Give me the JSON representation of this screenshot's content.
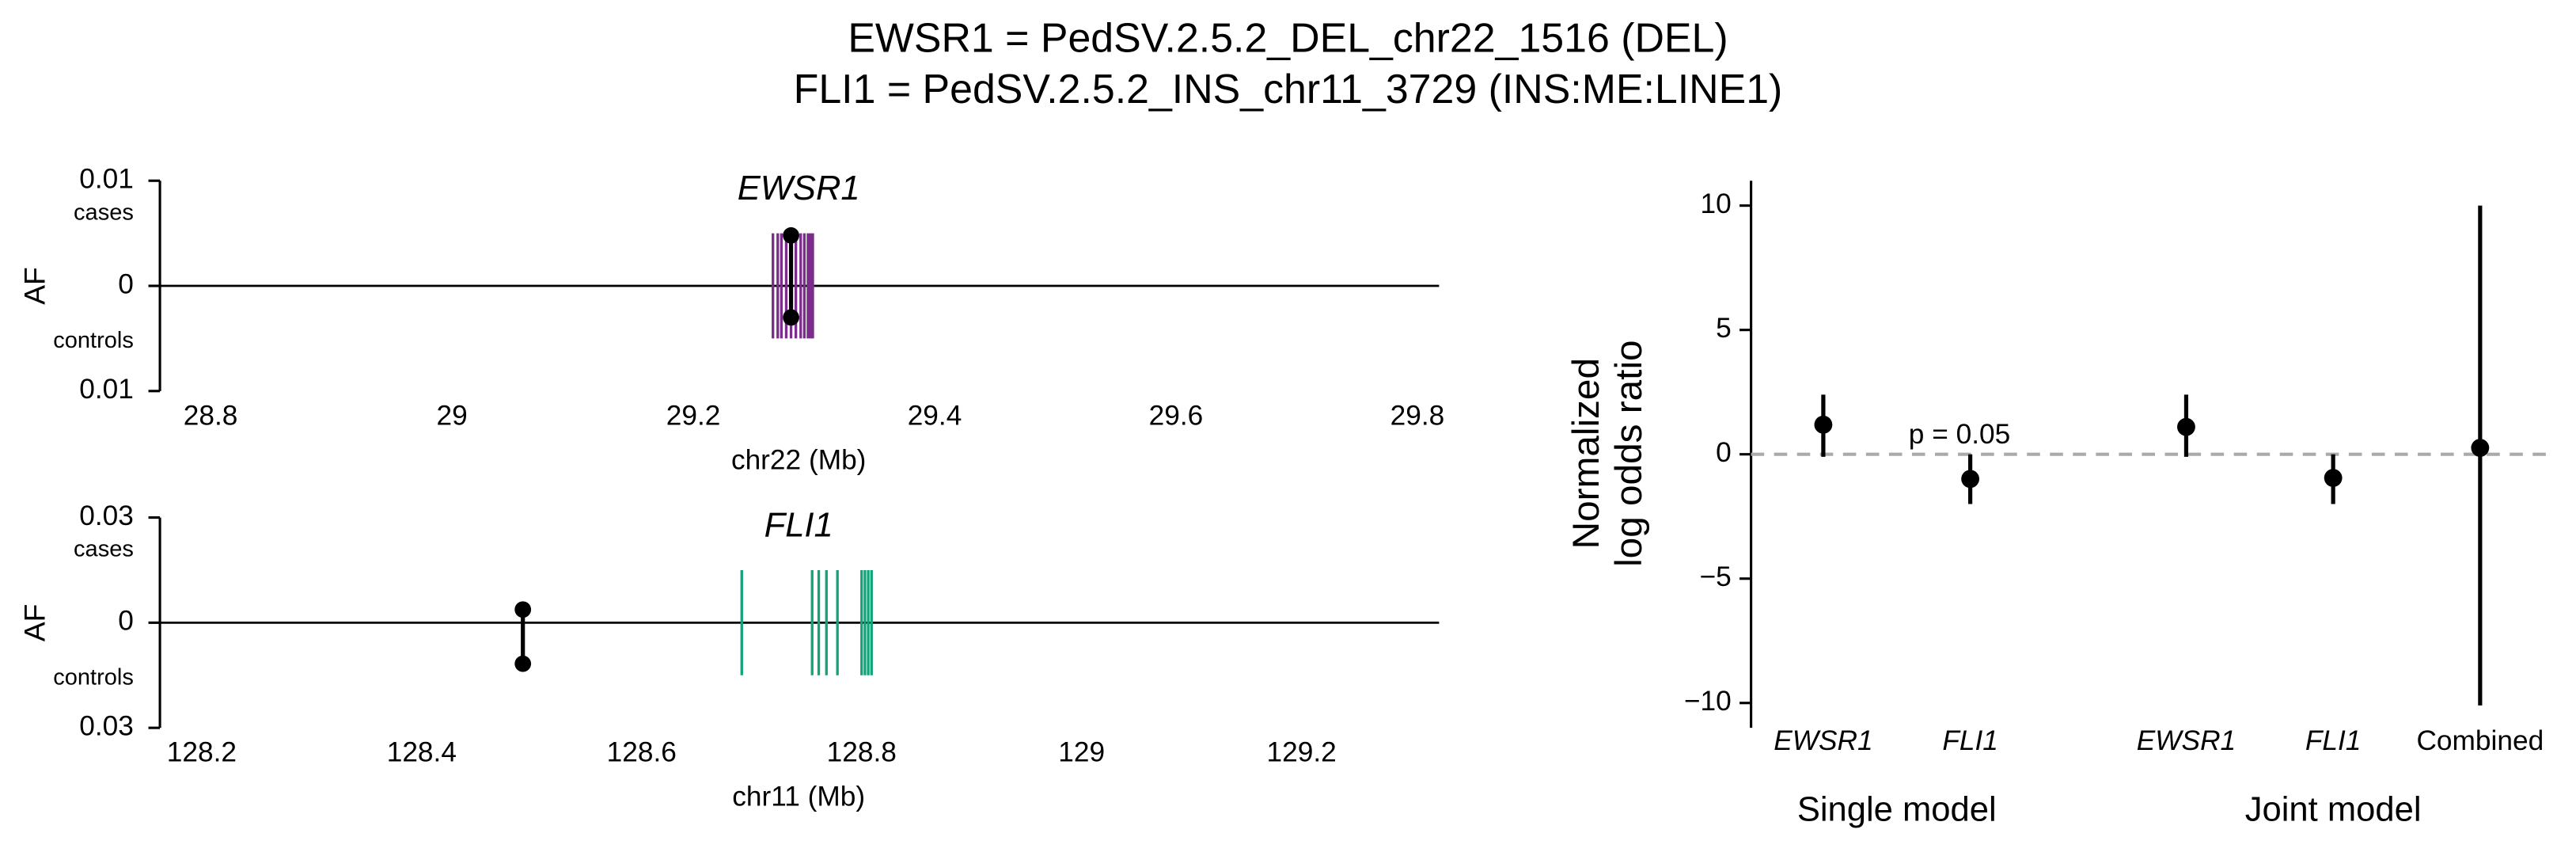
{
  "title": [
    "EWSR1 = PedSV.2.5.2_DEL_chr22_1516 (DEL)",
    "FLI1 = PedSV.2.5.2_INS_chr11_3729 (INS:ME:LINE1)"
  ],
  "chart_data": [
    {
      "type": "locus",
      "title": "EWSR1",
      "ylabel": "AF",
      "xlabel": "chr22 (Mb)",
      "upper_label": "cases",
      "lower_label": "controls",
      "xlim": [
        28.758,
        29.818
      ],
      "xticks": [
        28.8,
        29.0,
        29.2,
        29.4,
        29.6,
        29.8
      ],
      "ylim": [
        -0.01,
        0.01
      ],
      "yticks": [
        0.01,
        0,
        {
          "value": -0.01,
          "label": "0.01"
        }
      ],
      "exons": [
        29.266,
        29.27,
        29.273,
        29.277,
        29.281,
        29.285,
        29.289,
        29.292,
        29.295,
        29.297,
        29.299
      ],
      "exon_color": "#7b2d8b",
      "sv": {
        "x": 29.281,
        "cases": 0.0048,
        "controls": 0.003
      }
    },
    {
      "type": "locus",
      "title": "FLI1",
      "ylabel": "AF",
      "xlabel": "chr11 (Mb)",
      "upper_label": "cases",
      "lower_label": "controls",
      "xlim": [
        128.162,
        129.325
      ],
      "xticks": [
        128.2,
        128.4,
        128.6,
        128.8,
        129.0,
        129.2
      ],
      "ylim": [
        -0.03,
        0.03
      ],
      "yticks": [
        0.03,
        0,
        {
          "value": -0.03,
          "label": "0.03"
        }
      ],
      "exons": [
        128.691,
        128.755,
        128.761,
        128.768,
        128.778,
        128.8,
        128.803,
        128.806,
        128.809
      ],
      "exon_color": "#12a37a",
      "sv": {
        "x": 128.492,
        "cases": 0.00375,
        "controls": 0.0117
      }
    },
    {
      "type": "forest",
      "ylabel": [
        "Normalized",
        "log odds ratio"
      ],
      "annotation": "p = 0.05",
      "ylim": [
        -11,
        11
      ],
      "yticks": [
        10,
        5,
        0,
        {
          "value": -5,
          "label": "−5"
        },
        {
          "value": -10,
          "label": "−10"
        }
      ],
      "reference_line": 0,
      "groups": [
        {
          "label": "Single model",
          "categories": [
            "EWSR1",
            "FLI1"
          ],
          "values": [
            1.19,
            -0.99
          ],
          "lower": [
            -0.1,
            -2.0
          ],
          "upper": [
            2.4,
            0
          ]
        },
        {
          "label": "Joint model",
          "categories": [
            "EWSR1",
            "FLI1",
            "Combined"
          ],
          "values": [
            1.1,
            -0.95,
            0.26
          ],
          "lower": [
            -0.1,
            -2.0,
            -10.1
          ],
          "upper": [
            2.4,
            0,
            10
          ]
        }
      ]
    }
  ]
}
